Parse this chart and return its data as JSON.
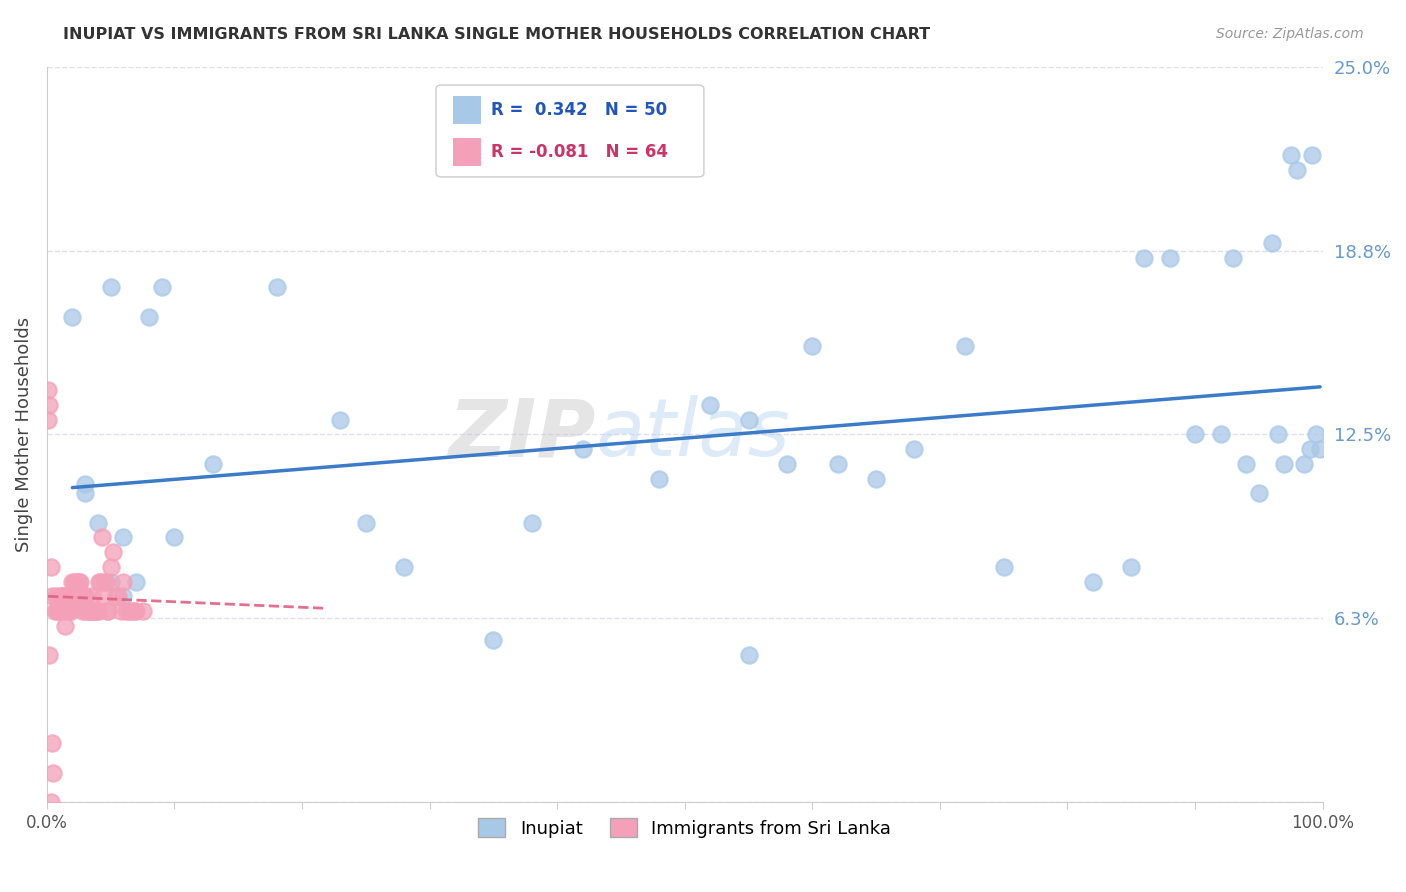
{
  "title": "INUPIAT VS IMMIGRANTS FROM SRI LANKA SINGLE MOTHER HOUSEHOLDS CORRELATION CHART",
  "source": "Source: ZipAtlas.com",
  "ylabel": "Single Mother Households",
  "watermark": "ZIPatlas",
  "series1_name": "Inupiat",
  "series2_name": "Immigrants from Sri Lanka",
  "series1_color": "#A8C8E8",
  "series2_color": "#F4A0B8",
  "series1_line_color": "#3B7BC8",
  "series2_line_color": "#E06080",
  "R1": 0.342,
  "N1": 50,
  "R2": -0.081,
  "N2": 64,
  "xlim": [
    0,
    1.0
  ],
  "ylim": [
    0,
    0.25
  ],
  "background_color": "#FFFFFF",
  "grid_color": "#DDDDEE",
  "series1_x": [
    0.02,
    0.03,
    0.05,
    0.06,
    0.08,
    0.09,
    0.1,
    0.13,
    0.18,
    0.23,
    0.35,
    0.42,
    0.52,
    0.55,
    0.58,
    0.6,
    0.62,
    0.65,
    0.68,
    0.72,
    0.75,
    0.82,
    0.85,
    0.86,
    0.88,
    0.9,
    0.92,
    0.93,
    0.94,
    0.95,
    0.96,
    0.965,
    0.97,
    0.975,
    0.98,
    0.985,
    0.99,
    0.992,
    0.995,
    0.998,
    0.03,
    0.04,
    0.05,
    0.06,
    0.07,
    0.25,
    0.28,
    0.38,
    0.48,
    0.55
  ],
  "series1_y": [
    0.165,
    0.108,
    0.175,
    0.09,
    0.165,
    0.175,
    0.09,
    0.115,
    0.175,
    0.13,
    0.055,
    0.12,
    0.135,
    0.05,
    0.115,
    0.155,
    0.115,
    0.11,
    0.12,
    0.155,
    0.08,
    0.075,
    0.08,
    0.185,
    0.185,
    0.125,
    0.125,
    0.185,
    0.115,
    0.105,
    0.19,
    0.125,
    0.115,
    0.22,
    0.215,
    0.115,
    0.12,
    0.22,
    0.125,
    0.12,
    0.105,
    0.095,
    0.075,
    0.07,
    0.075,
    0.095,
    0.08,
    0.095,
    0.11,
    0.13
  ],
  "series2_x": [
    0.001,
    0.002,
    0.003,
    0.004,
    0.005,
    0.006,
    0.007,
    0.008,
    0.009,
    0.01,
    0.011,
    0.012,
    0.013,
    0.014,
    0.015,
    0.016,
    0.017,
    0.018,
    0.019,
    0.02,
    0.021,
    0.022,
    0.023,
    0.024,
    0.025,
    0.026,
    0.027,
    0.028,
    0.029,
    0.03,
    0.031,
    0.032,
    0.033,
    0.034,
    0.035,
    0.036,
    0.037,
    0.038,
    0.039,
    0.04,
    0.041,
    0.042,
    0.043,
    0.044,
    0.045,
    0.046,
    0.047,
    0.048,
    0.05,
    0.052,
    0.054,
    0.056,
    0.058,
    0.06,
    0.062,
    0.064,
    0.066,
    0.068,
    0.07,
    0.075,
    0.001,
    0.002,
    0.003,
    0.004
  ],
  "series2_y": [
    0.14,
    0.05,
    0.08,
    0.07,
    0.01,
    0.065,
    0.07,
    0.065,
    0.065,
    0.07,
    0.065,
    0.07,
    0.07,
    0.06,
    0.065,
    0.07,
    0.065,
    0.07,
    0.065,
    0.075,
    0.075,
    0.07,
    0.075,
    0.075,
    0.075,
    0.075,
    0.07,
    0.065,
    0.065,
    0.07,
    0.07,
    0.065,
    0.065,
    0.065,
    0.07,
    0.065,
    0.065,
    0.065,
    0.065,
    0.065,
    0.075,
    0.075,
    0.09,
    0.07,
    0.075,
    0.075,
    0.065,
    0.065,
    0.08,
    0.085,
    0.07,
    0.07,
    0.065,
    0.075,
    0.065,
    0.065,
    0.065,
    0.065,
    0.065,
    0.065,
    0.13,
    0.135,
    0.0,
    0.02
  ]
}
